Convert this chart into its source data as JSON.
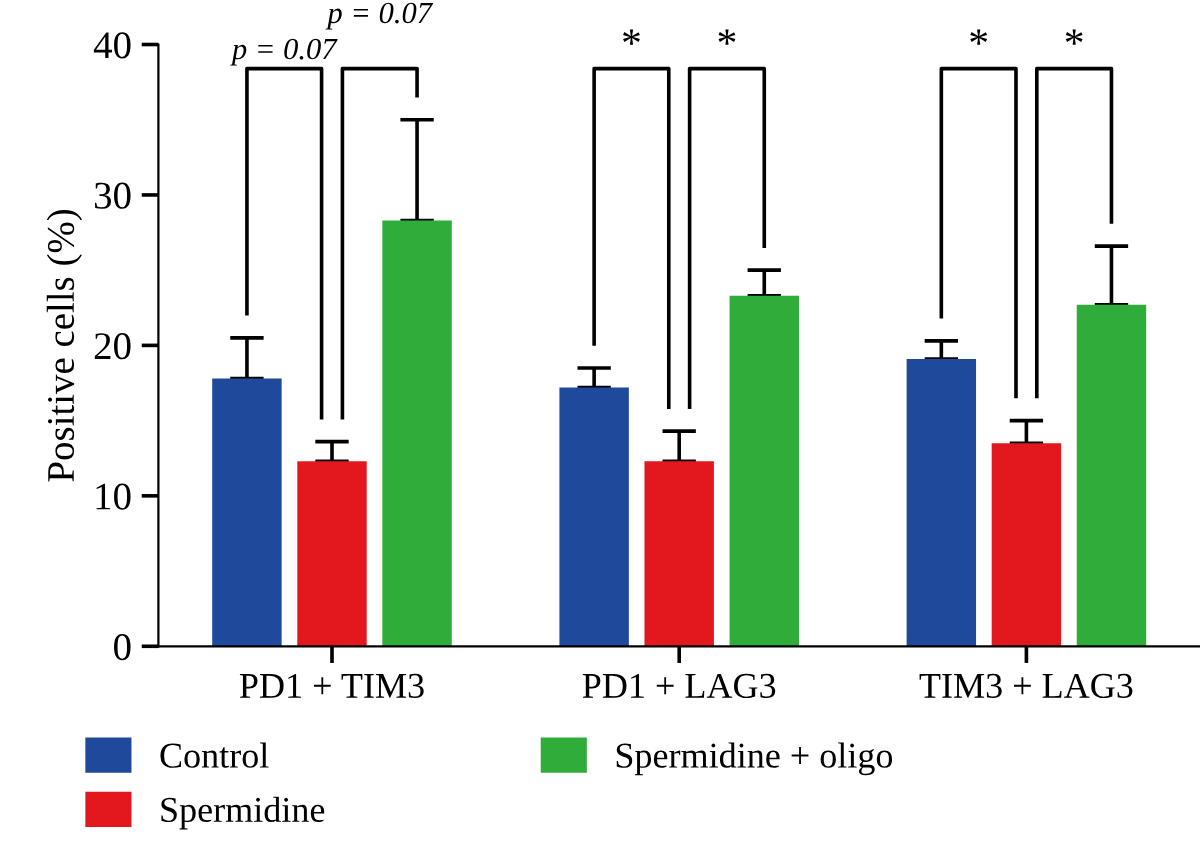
{
  "chart_data": {
    "type": "bar",
    "ylabel": "Positive cells (%)",
    "categories": [
      "PD1 + TIM3",
      "PD1 + LAG3",
      "TIM3 + LAG3"
    ],
    "series": [
      {
        "name": "Control",
        "color": "#1f4a9c",
        "values": [
          17.8,
          17.2,
          19.1
        ],
        "errors": [
          [
            17.8,
            20.5
          ],
          [
            17.2,
            18.5
          ],
          [
            19.1,
            20.3
          ]
        ]
      },
      {
        "name": "Spermidine",
        "color": "#e3171e",
        "values": [
          12.3,
          12.3,
          13.5
        ],
        "errors": [
          [
            12.3,
            13.6
          ],
          [
            12.3,
            14.3
          ],
          [
            13.5,
            15.0
          ]
        ]
      },
      {
        "name": "Spermidine + oligo",
        "color": "#30ac3a",
        "values": [
          28.3,
          23.3,
          22.7
        ],
        "errors": [
          [
            28.3,
            35.0
          ],
          [
            23.3,
            25.0
          ],
          [
            22.7,
            26.6
          ]
        ]
      }
    ],
    "annotations": [
      "p = 0.07",
      "p = 0.07",
      "*",
      "*",
      "*",
      "*"
    ],
    "ylim": [
      0,
      40
    ],
    "yticks": [
      0,
      10,
      20,
      30,
      40
    ],
    "grid": false,
    "legend": "bottom"
  }
}
